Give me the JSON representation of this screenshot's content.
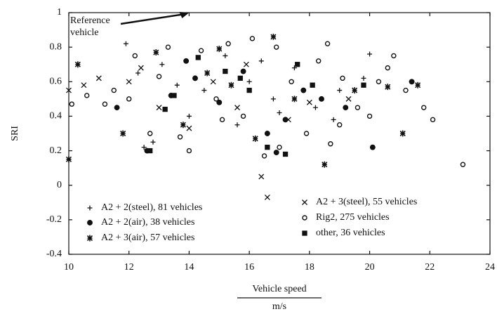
{
  "chart_data": {
    "type": "scatter",
    "xlabel": "Vehicle speed",
    "xunit": "m/s",
    "ylabel": "SRI",
    "annotation": {
      "text": [
        "Reference",
        "vehicle"
      ],
      "x": 14,
      "y": 1
    },
    "xlim": [
      10,
      24
    ],
    "xticks": [
      10,
      12,
      14,
      16,
      18,
      20,
      22,
      24
    ],
    "ylim": [
      -0.4,
      1
    ],
    "yticks": [
      -0.4,
      -0.2,
      0,
      0.2,
      0.4,
      0.6,
      0.8,
      1
    ],
    "series": [
      {
        "name": "A2 + 2(steel), 81 vehicles",
        "color": "#111",
        "marker": "plus",
        "x": [
          11.9,
          12.3,
          13.1,
          14.5,
          15.2,
          16.0,
          16.8,
          17.5,
          18.2,
          19.0,
          19.8,
          20.0,
          12.8,
          14.0,
          15.6,
          17.0,
          18.8,
          13.6,
          16.4,
          12.5
        ],
        "values": [
          0.82,
          0.65,
          0.7,
          0.55,
          0.75,
          0.6,
          0.5,
          0.68,
          0.45,
          0.55,
          0.62,
          0.76,
          0.25,
          0.4,
          0.35,
          0.42,
          0.38,
          0.58,
          0.72,
          0.22
        ]
      },
      {
        "name": "A2 + 2(air), 38 vehicles",
        "color": "#111",
        "marker": "dot",
        "x": [
          11.6,
          12.6,
          13.4,
          14.2,
          15.0,
          15.8,
          16.6,
          17.2,
          18.4,
          19.2,
          20.1,
          21.4,
          16.9,
          13.9,
          17.8
        ],
        "values": [
          0.45,
          0.2,
          0.52,
          0.62,
          0.48,
          0.66,
          0.3,
          0.38,
          0.5,
          0.45,
          0.22,
          0.6,
          0.19,
          0.72,
          0.55
        ]
      },
      {
        "name": "A2 + 3(air), 57 vehicles",
        "color": "#111",
        "marker": "star",
        "x": [
          10.3,
          10.0,
          11.8,
          12.9,
          13.8,
          14.6,
          15.4,
          16.2,
          16.8,
          17.5,
          18.5,
          19.5,
          20.6,
          21.6,
          21.1,
          15.0
        ],
        "values": [
          0.7,
          0.15,
          0.3,
          0.77,
          0.35,
          0.65,
          0.58,
          0.27,
          0.86,
          0.5,
          0.12,
          0.55,
          0.57,
          0.58,
          0.3,
          0.79
        ]
      },
      {
        "name": "A2 + 3(steel), 55 vehicles",
        "color": "#111",
        "marker": "cross",
        "x": [
          10.0,
          10.5,
          11.0,
          12.0,
          13.0,
          14.0,
          14.8,
          15.6,
          16.4,
          16.6,
          17.3,
          18.0,
          19.3,
          12.4,
          15.9
        ],
        "values": [
          0.55,
          0.58,
          0.62,
          0.6,
          0.45,
          0.33,
          0.6,
          0.45,
          0.05,
          -0.07,
          0.38,
          0.48,
          0.5,
          0.68,
          0.7
        ]
      },
      {
        "name": "Rig2, 275 vehicles",
        "color": "#111",
        "marker": "circle",
        "x": [
          10.1,
          10.6,
          11.2,
          11.5,
          12.2,
          12.7,
          13.3,
          13.7,
          14.0,
          14.4,
          14.9,
          15.3,
          15.8,
          16.1,
          16.5,
          16.9,
          17.4,
          17.9,
          18.3,
          18.7,
          19.1,
          19.6,
          20.0,
          20.3,
          20.8,
          21.2,
          21.8,
          22.1,
          23.1,
          20.6,
          19.0,
          17.0,
          15.1,
          13.0,
          12.0,
          18.6
        ],
        "values": [
          0.47,
          0.52,
          0.47,
          0.55,
          0.75,
          0.3,
          0.8,
          0.28,
          0.2,
          0.78,
          0.5,
          0.82,
          0.4,
          0.85,
          0.17,
          0.8,
          0.6,
          0.3,
          0.72,
          0.24,
          0.62,
          0.45,
          0.4,
          0.6,
          0.75,
          0.55,
          0.45,
          0.38,
          0.12,
          0.68,
          0.35,
          0.22,
          0.38,
          0.63,
          0.5,
          0.82
        ]
      },
      {
        "name": "other, 36 vehicles",
        "color": "#111",
        "marker": "square",
        "x": [
          12.7,
          13.5,
          14.3,
          15.2,
          16.0,
          16.6,
          17.2,
          18.1,
          19.8,
          13.2,
          15.7,
          17.6
        ],
        "values": [
          0.2,
          0.52,
          0.74,
          0.66,
          0.55,
          0.22,
          0.18,
          0.58,
          0.58,
          0.44,
          0.62,
          0.7
        ]
      }
    ]
  }
}
